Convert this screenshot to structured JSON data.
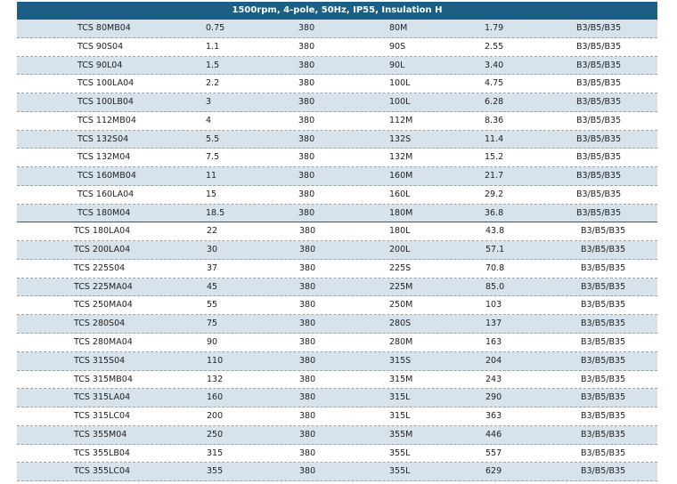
{
  "title": "1500rpm, 4-pole, 50Hz, IP55, Insulation H",
  "rows": [
    [
      "TCS 80MB04",
      "0.75",
      "380",
      "80M",
      "1.79",
      "B3/B5/B35"
    ],
    [
      "TCS 90S04",
      "1.1",
      "380",
      "90S",
      "2.55",
      "B3/B5/B35"
    ],
    [
      "TCS 90L04",
      "1.5",
      "380",
      "90L",
      "3.40",
      "B3/B5/B35"
    ],
    [
      "TCS 100LA04",
      "2.2",
      "380",
      "100L",
      "4.75",
      "B3/B5/B35"
    ],
    [
      "TCS 100LB04",
      "3",
      "380",
      "100L",
      "6.28",
      "B3/B5/B35"
    ],
    [
      "TCS 112MB04",
      "4",
      "380",
      "112M",
      "8.36",
      "B3/B5/B35"
    ],
    [
      "TCS 132S04",
      "5.5",
      "380",
      "132S",
      "11.4",
      "B3/B5/B35"
    ],
    [
      "TCS 132M04",
      "7.5",
      "380",
      "132M",
      "15.2",
      "B3/B5/B35"
    ],
    [
      "TCS 160MB04",
      "11",
      "380",
      "160M",
      "21.7",
      "B3/B5/B35"
    ],
    [
      "TCS 160LA04",
      "15",
      "380",
      "160L",
      "29.2",
      "B3/B5/B35"
    ],
    [
      "TCS 180M04",
      "18.5",
      "380",
      "180M",
      "36.8",
      "B3/B5/B35"
    ],
    [
      "TCS 180LA04",
      "22",
      "380",
      "180L",
      "43.8",
      "B3/B5/B35"
    ],
    [
      "TCS 200LA04",
      "30",
      "380",
      "200L",
      "57.1",
      "B3/B5/B35"
    ],
    [
      "TCS 225S04",
      "37",
      "380",
      "225S",
      "70.8",
      "B3/B5/B35"
    ],
    [
      "TCS 225MA04",
      "45",
      "380",
      "225M",
      "85.0",
      "B3/B5/B35"
    ],
    [
      "TCS 250MA04",
      "55",
      "380",
      "250M",
      "103",
      "B3/B5/B35"
    ],
    [
      "TCS 280S04",
      "75",
      "380",
      "280S",
      "137",
      "B3/B5/B35"
    ],
    [
      "TCS 280MA04",
      "90",
      "380",
      "280M",
      "163",
      "B3/B5/B35"
    ],
    [
      "TCS 315S04",
      "110",
      "380",
      "315S",
      "204",
      "B3/B5/B35"
    ],
    [
      "TCS 315MB04",
      "132",
      "380",
      "315M",
      "243",
      "B3/B5/B35"
    ],
    [
      "TCS 315LA04",
      "160",
      "380",
      "315L",
      "290",
      "B3/B5/B35"
    ],
    [
      "TCS 315LC04",
      "200",
      "380",
      "315L",
      "363",
      "B3/B5/B35"
    ],
    [
      "TCS 355M04",
      "250",
      "380",
      "355M",
      "446",
      "B3/B5/B35"
    ],
    [
      "TCS 355LB04",
      "315",
      "380",
      "355L",
      "557",
      "B3/B5/B35"
    ],
    [
      "TCS 355LC04",
      "355",
      "380",
      "355L",
      "629",
      "B3/B5/B35"
    ]
  ]
}
